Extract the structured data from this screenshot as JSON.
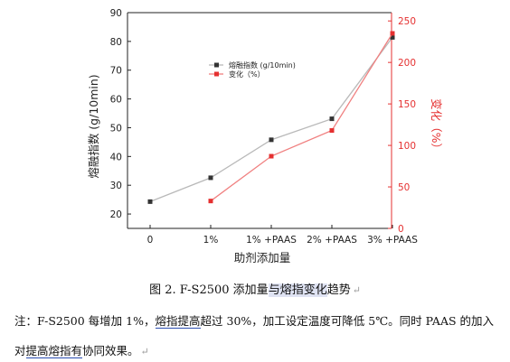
{
  "chart_data": {
    "type": "line",
    "categories": [
      "0",
      "1%",
      "1% +PAAS",
      "2% +PAAS",
      "3% +PAAS"
    ],
    "xlabel": "助剂添加量",
    "ylabel_left": "熔融指数 (g/10min)",
    "ylabel_right": "变化（%）",
    "ylim_left": [
      15,
      90
    ],
    "ylim_right": [
      0,
      260
    ],
    "yticks_left": [
      20,
      30,
      40,
      50,
      60,
      70,
      80,
      90
    ],
    "yticks_right": [
      0,
      50,
      100,
      150,
      200,
      250
    ],
    "legend_position": "top-center",
    "grid": false,
    "series": [
      {
        "name": "熔融指数 (g/10min)",
        "axis": "left",
        "color": "#333333",
        "line_color": "#b9b9b9",
        "values": [
          24.3,
          32.6,
          45.8,
          53.1,
          81.4
        ]
      },
      {
        "name": "变化（%）",
        "axis": "right",
        "color": "#e53030",
        "line_color": "#f08080",
        "values": [
          null,
          33,
          87,
          118,
          235
        ]
      }
    ]
  },
  "caption": {
    "prefix": "图 2. F-S2500 添加量",
    "hl1": "与熔指变化",
    "suffix": "趋势",
    "mark": "↵"
  },
  "note": {
    "line1_a": "注：F-S2500 每增加 1%，",
    "line1_b": "熔指提高",
    "line1_c": "超过 30%，加工设定温度可降低 5℃。同时 PAAS 的加入",
    "line2_a": "对",
    "line2_b": "提高熔指有",
    "line2_c": "协同效果。",
    "mark": "↵"
  }
}
